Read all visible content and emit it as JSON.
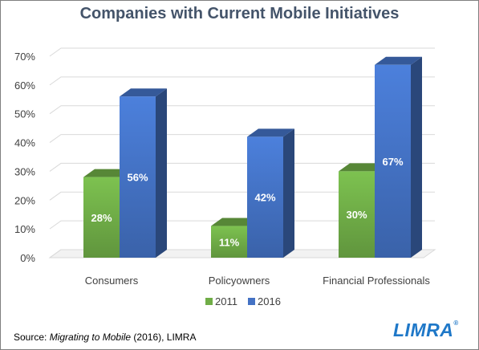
{
  "chart_data": {
    "type": "bar",
    "title": "Companies with Current Mobile Initiatives",
    "categories": [
      "Consumers",
      "Policyowners",
      "Financial Professionals"
    ],
    "series": [
      {
        "name": "2011",
        "values": [
          28,
          11,
          30
        ],
        "labels": [
          "28%",
          "11%",
          "30%"
        ],
        "color": "#70ad47"
      },
      {
        "name": "2016",
        "values": [
          56,
          42,
          67
        ],
        "labels": [
          "56%",
          "42%",
          "67%"
        ],
        "color": "#4472c4"
      }
    ],
    "y_ticks": [
      "0%",
      "10%",
      "20%",
      "30%",
      "40%",
      "50%",
      "60%",
      "70%"
    ],
    "ylim": [
      0,
      70
    ],
    "grid": true,
    "legend_position": "bottom"
  },
  "source": {
    "prefix": "Source: ",
    "title": "Migrating to Mobile",
    "suffix": " (2016), LIMRA"
  },
  "logo": {
    "text": "LIMRA",
    "mark": "®"
  },
  "colors": {
    "title": "#44546a",
    "gridline": "#d9d9d9",
    "green_front": "#70ad47",
    "blue_front": "#4472c4"
  }
}
